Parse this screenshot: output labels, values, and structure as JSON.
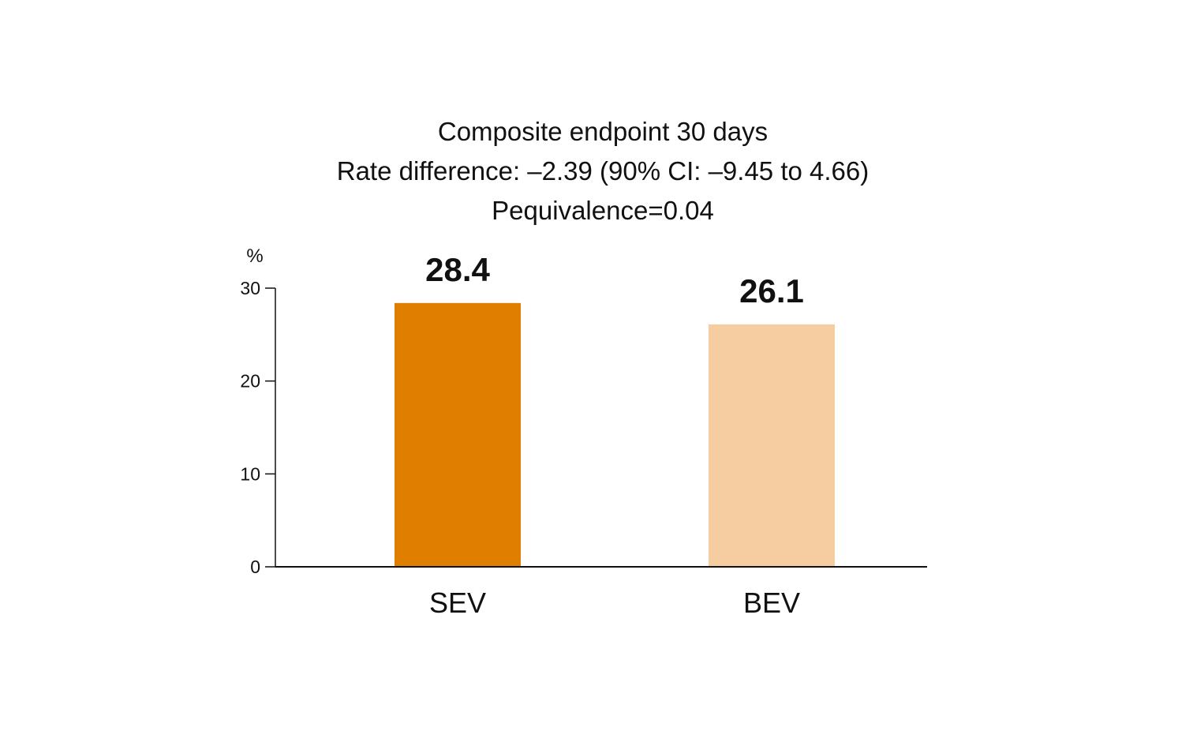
{
  "chart_data": {
    "type": "bar",
    "title_lines": [
      "Composite endpoint 30 days",
      "Rate difference: –2.39 (90% CI: –9.45 to 4.66)",
      "Pequivalence=0.04"
    ],
    "ylabel": "%",
    "xlabel": "",
    "categories": [
      "SEV",
      "BEV"
    ],
    "values": [
      28.4,
      26.1
    ],
    "value_labels": [
      "28.4",
      "26.1"
    ],
    "colors": [
      "#E07E00",
      "#F5CDA0"
    ],
    "ylim": [
      0,
      30
    ],
    "yticks": [
      0,
      10,
      20,
      30
    ],
    "ytick_labels": [
      "0",
      "10",
      "20",
      "30"
    ],
    "grid": false,
    "legend": "none"
  }
}
